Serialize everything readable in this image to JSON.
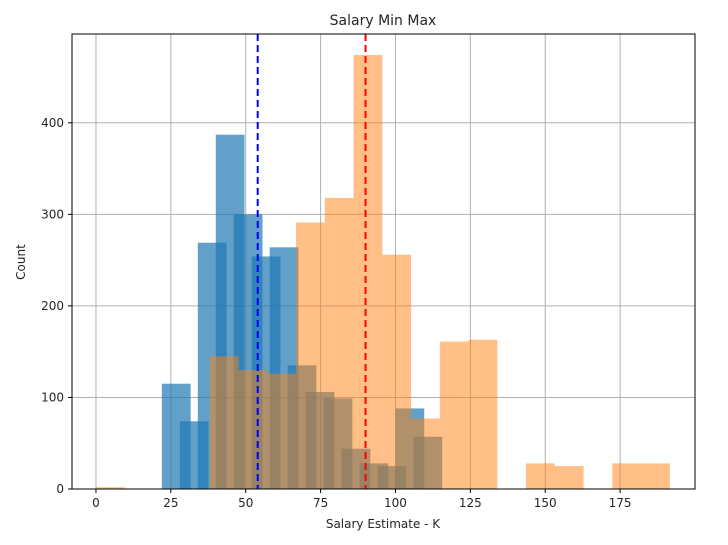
{
  "chart_data": {
    "type": "bar",
    "title": "Salary Min Max",
    "xlabel": "Salary Estimate - K",
    "ylabel": "Count",
    "xlim": [
      -8,
      200
    ],
    "ylim": [
      0,
      497
    ],
    "xticks": [
      0,
      25,
      50,
      75,
      100,
      125,
      150,
      175
    ],
    "yticks": [
      0,
      100,
      200,
      300,
      400
    ],
    "grid": true,
    "bar_width": 9.6,
    "series": [
      {
        "color": "#1f77b4",
        "opacity": 0.7,
        "bins": [
          {
            "x": 22.0,
            "value": 115
          },
          {
            "x": 28.0,
            "value": 74
          },
          {
            "x": 34.0,
            "value": 269
          },
          {
            "x": 40.0,
            "value": 387
          },
          {
            "x": 46.0,
            "value": 300
          },
          {
            "x": 52.0,
            "value": 254
          },
          {
            "x": 58.0,
            "value": 264
          },
          {
            "x": 64.0,
            "value": 135
          },
          {
            "x": 70.0,
            "value": 106
          },
          {
            "x": 76.0,
            "value": 99
          },
          {
            "x": 82.0,
            "value": 44
          },
          {
            "x": 88.0,
            "value": 28
          },
          {
            "x": 94.0,
            "value": 25
          },
          {
            "x": 100.0,
            "value": 88
          },
          {
            "x": 106.0,
            "value": 57
          }
        ]
      },
      {
        "color": "#ff7f0e",
        "opacity": 0.5,
        "bins": [
          {
            "x": 0.0,
            "value": 2
          },
          {
            "x": 38.0,
            "value": 145
          },
          {
            "x": 47.6,
            "value": 130
          },
          {
            "x": 57.2,
            "value": 126
          },
          {
            "x": 66.8,
            "value": 291
          },
          {
            "x": 76.4,
            "value": 318
          },
          {
            "x": 86.0,
            "value": 474
          },
          {
            "x": 95.6,
            "value": 256
          },
          {
            "x": 105.2,
            "value": 77
          },
          {
            "x": 114.8,
            "value": 161
          },
          {
            "x": 124.4,
            "value": 163
          },
          {
            "x": 143.6,
            "value": 28
          },
          {
            "x": 153.2,
            "value": 25
          },
          {
            "x": 172.4,
            "value": 28
          },
          {
            "x": 182.0,
            "value": 28
          }
        ]
      }
    ],
    "reference_lines": [
      {
        "x": 54,
        "color": "#0000ff",
        "style": "dashed"
      },
      {
        "x": 90,
        "color": "#ff0000",
        "style": "dashed"
      }
    ]
  }
}
